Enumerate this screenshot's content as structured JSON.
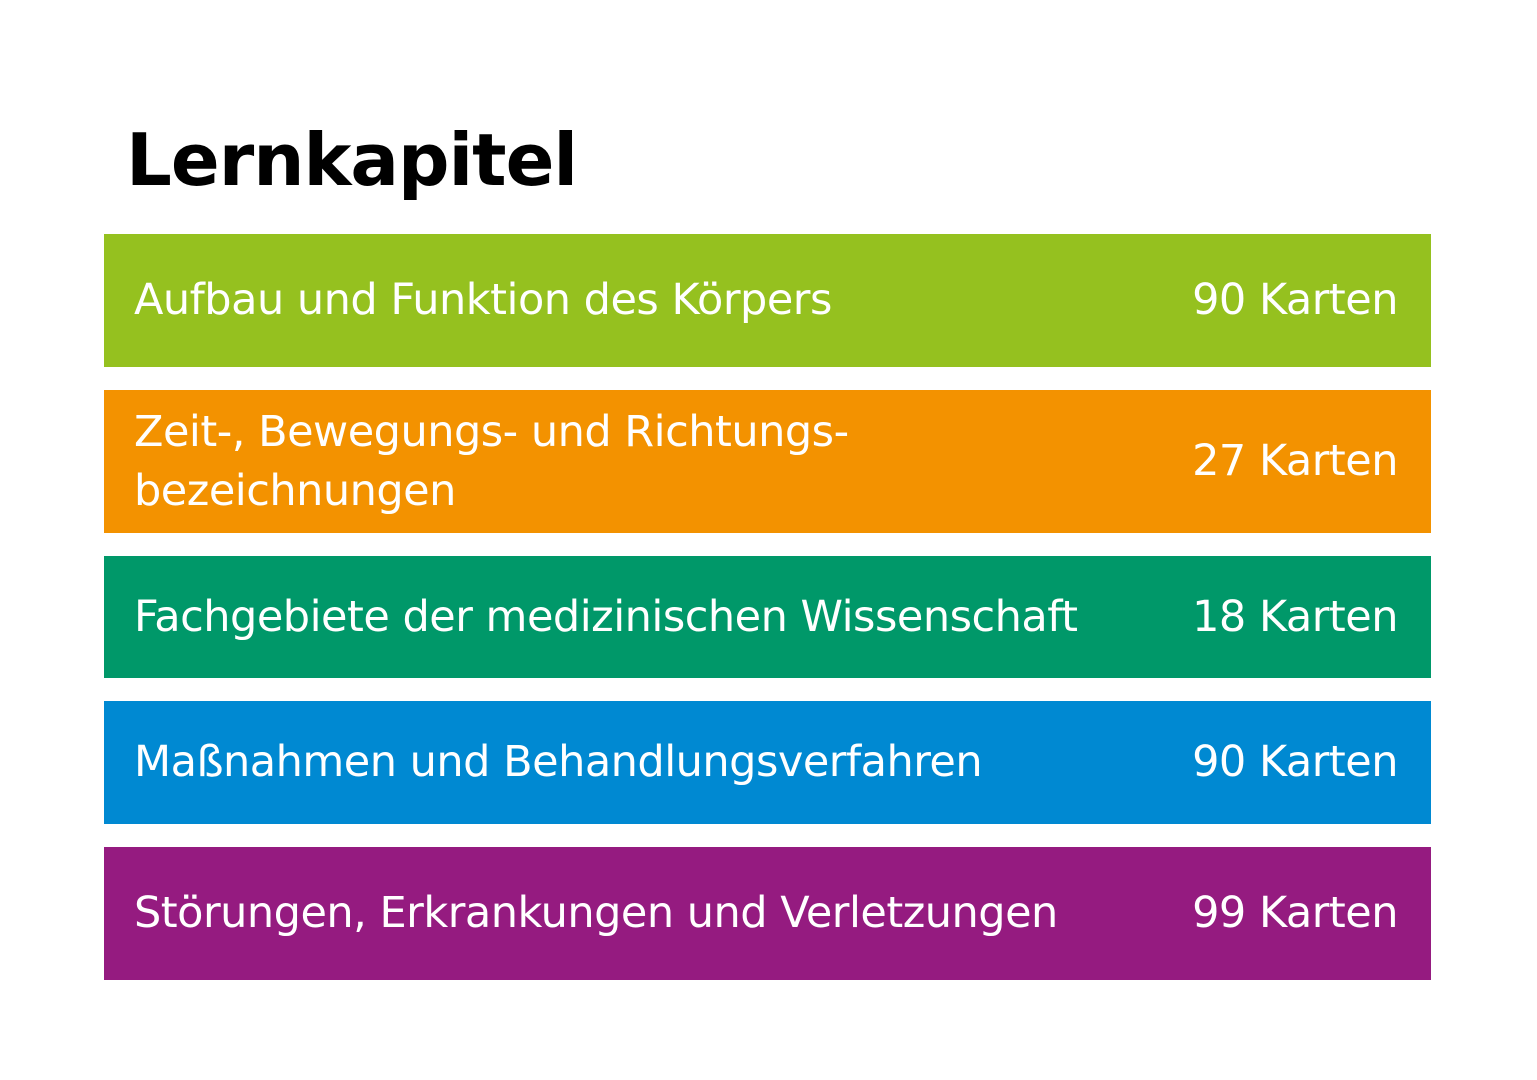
{
  "page": {
    "title": "Lernkapitel"
  },
  "chapters": [
    {
      "title_line1": "Aufbau und Funktion des Körpers",
      "title_line2": "",
      "count": "90 Karten",
      "color": "#95c11f"
    },
    {
      "title_line1": "Zeit-, Bewegungs- und Richtungs-",
      "title_line2": "bezeichnungen",
      "count": "27 Karten",
      "color": "#f39200"
    },
    {
      "title_line1": "Fachgebiete der medizinischen Wissenschaft",
      "title_line2": "",
      "count": "18 Karten",
      "color": "#009869"
    },
    {
      "title_line1": "Maßnahmen und Behandlungsverfahren",
      "title_line2": "",
      "count": "90 Karten",
      "color": "#0089d2"
    },
    {
      "title_line1": "Störungen, Erkrankungen und Verletzungen",
      "title_line2": "",
      "count": "99 Karten",
      "color": "#951b80"
    }
  ]
}
